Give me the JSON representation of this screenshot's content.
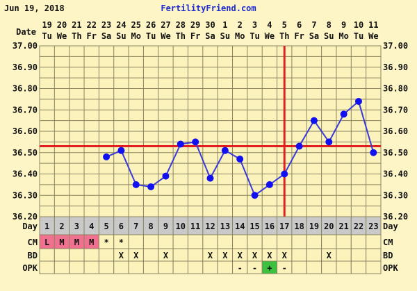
{
  "header": {
    "date": "Jun 19, 2018",
    "site": "FertilityFriend.com"
  },
  "labels": {
    "date": "Date",
    "day": "Day",
    "cm": "CM",
    "bd": "BD",
    "opk": "OPK"
  },
  "colors": {
    "background": "#fdf5c6",
    "grid_fill": "#fcf2bb",
    "grid_line": "#8a8560",
    "line": "#3a3ad8",
    "point": "#1010f0",
    "coverline": "#e02020",
    "day_row": "#c9c9c9",
    "cm_fill": "#f07090",
    "opk_positive": "#3cc040"
  },
  "chart_data": {
    "type": "line",
    "ylim": [
      36.2,
      37.0
    ],
    "yticks": [
      "37.00",
      "36.90",
      "36.80",
      "36.70",
      "36.60",
      "36.50",
      "36.40",
      "36.30",
      "36.20"
    ],
    "dates": [
      "19",
      "20",
      "21",
      "22",
      "23",
      "24",
      "25",
      "26",
      "27",
      "28",
      "29",
      "30",
      "1",
      "2",
      "3",
      "4",
      "5",
      "6",
      "7",
      "8",
      "9",
      "10",
      "11"
    ],
    "weekdays": [
      "Tu",
      "We",
      "Th",
      "Fr",
      "Sa",
      "Su",
      "Mo",
      "Tu",
      "We",
      "Th",
      "Fr",
      "Sa",
      "Su",
      "Mo",
      "Tu",
      "We",
      "Th",
      "Fr",
      "Sa",
      "Su",
      "Mo",
      "Tu",
      "We"
    ],
    "days": [
      1,
      2,
      3,
      4,
      5,
      6,
      7,
      8,
      9,
      10,
      11,
      12,
      13,
      14,
      15,
      16,
      17,
      18,
      19,
      20,
      21,
      22,
      23
    ],
    "temperatures": [
      null,
      null,
      null,
      null,
      36.48,
      36.51,
      36.35,
      36.34,
      36.39,
      36.54,
      36.55,
      36.38,
      36.51,
      36.47,
      36.3,
      36.35,
      36.4,
      36.53,
      36.65,
      36.55,
      36.68,
      36.74,
      36.5
    ],
    "coverline": 36.53,
    "ovulation_day": 17,
    "grid": true,
    "cm": [
      "L",
      "M",
      "M",
      "M",
      "*",
      "*",
      "",
      "",
      "",
      "",
      "",
      "",
      "",
      "",
      "",
      "",
      "",
      "",
      "",
      "",
      "",
      "",
      ""
    ],
    "bd": [
      "",
      "",
      "",
      "",
      "",
      "X",
      "X",
      "",
      "X",
      "",
      "",
      "X",
      "X",
      "X",
      "X",
      "X",
      "X",
      "",
      "",
      "X",
      "",
      "",
      ""
    ],
    "opk": [
      "",
      "",
      "",
      "",
      "",
      "",
      "",
      "",
      "",
      "",
      "",
      "",
      "",
      "-",
      "-",
      "+",
      "-",
      "",
      "",
      "",
      "",
      "",
      ""
    ]
  }
}
